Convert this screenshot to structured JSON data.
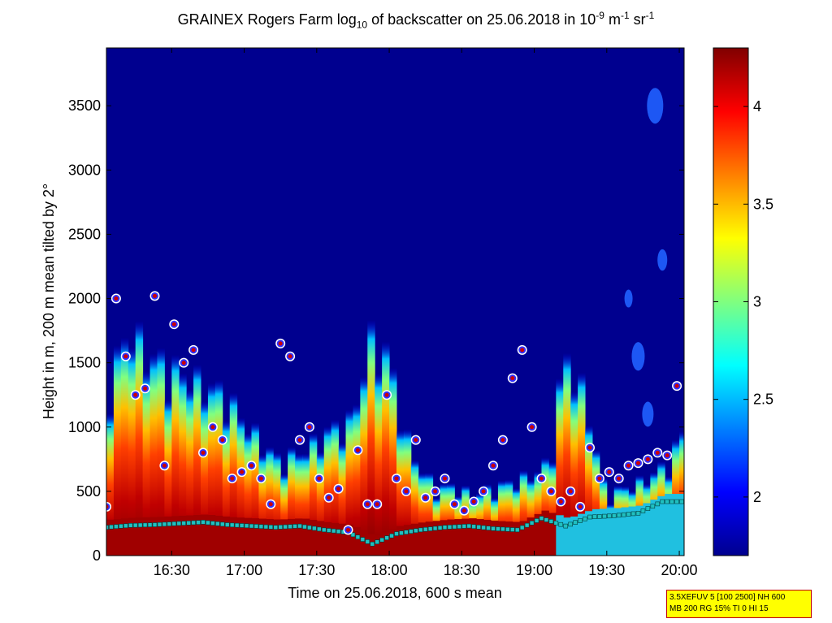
{
  "title": {
    "prefix": "GRAINEX Rogers Farm log",
    "sub": "10",
    "mid": " of backscatter on 25.06.2018 in 10",
    "sup1": "-9",
    "mid2": " m",
    "sup2": "-1",
    "mid3": " sr",
    "sup3": "-1"
  },
  "infobox": {
    "line1": "3.5XEFUV 5 [100 2500] NH 600",
    "line2": "MB 200 RG 15% TI 0 HI 15"
  },
  "colors": {
    "background_low": "#00008f",
    "aerosol_high": "#800000",
    "marker_fill": "#cc0000",
    "marker_ring": "#3030ff",
    "marker_halo": "#ffffff",
    "cloud_base": "#20c0c0"
  },
  "chart_data": {
    "type": "heatmap",
    "xlabel": "Time on 25.06.2018, 600 s mean",
    "ylabel": "Height in m, 200 m mean tilted by 2°",
    "x_ticks": [
      "16:30",
      "17:00",
      "17:30",
      "18:00",
      "18:30",
      "19:00",
      "19:30",
      "20:00"
    ],
    "y_ticks": [
      "0",
      "500",
      "1000",
      "1500",
      "2000",
      "2500",
      "3000",
      "3500"
    ],
    "xlim": [
      "16:03",
      "20:02"
    ],
    "ylim": [
      0,
      3950
    ],
    "colorbar": {
      "range": [
        1.7,
        4.3
      ],
      "ticks": [
        "2",
        "2.5",
        "3",
        "3.5",
        "4"
      ],
      "colormap": "jet"
    },
    "layer_top_profile": {
      "time_min": [
        0,
        8,
        15,
        25,
        35,
        48,
        55,
        70,
        82,
        92,
        100,
        108,
        115,
        122,
        128,
        135,
        142,
        150,
        158,
        166,
        175,
        182,
        188,
        196,
        205,
        212,
        220,
        228,
        234,
        238
      ],
      "height_m": [
        1300,
        1700,
        1500,
        1400,
        1300,
        1200,
        1000,
        700,
        800,
        950,
        1000,
        1600,
        1500,
        900,
        650,
        500,
        520,
        450,
        500,
        550,
        600,
        700,
        1500,
        1200,
        450,
        500,
        550,
        650,
        800,
        950
      ]
    },
    "gradient_markers_m": {
      "time_min": [
        0,
        4,
        8,
        12,
        16,
        20,
        24,
        28,
        32,
        36,
        40,
        44,
        48,
        52,
        56,
        60,
        64,
        68,
        72,
        76,
        80,
        84,
        88,
        92,
        96,
        100,
        104,
        108,
        112,
        116,
        120,
        124,
        128,
        132,
        136,
        140,
        144,
        148,
        152,
        156,
        160,
        164,
        168,
        172,
        176,
        180,
        184,
        188,
        192,
        196,
        200,
        204,
        208,
        212,
        216,
        220,
        224,
        228,
        232,
        236
      ],
      "height_m": [
        380,
        2000,
        1550,
        1250,
        1300,
        2020,
        700,
        1800,
        1500,
        1600,
        800,
        1000,
        900,
        600,
        650,
        700,
        600,
        400,
        1650,
        1550,
        900,
        1000,
        600,
        450,
        520,
        200,
        820,
        400,
        400,
        1250,
        600,
        500,
        900,
        450,
        500,
        600,
        400,
        350,
        420,
        500,
        700,
        900,
        1380,
        1600,
        1000,
        600,
        500,
        420,
        500,
        380,
        840,
        600,
        650,
        600,
        700,
        720,
        750,
        800,
        780,
        1320
      ]
    },
    "cloud_base_m": {
      "time_min": [
        0,
        10,
        20,
        30,
        40,
        50,
        60,
        70,
        80,
        90,
        100,
        110,
        120,
        130,
        140,
        150,
        160,
        170,
        180,
        190,
        200,
        210,
        220,
        230,
        238
      ],
      "height_m": [
        220,
        235,
        240,
        250,
        260,
        240,
        230,
        220,
        230,
        200,
        180,
        90,
        170,
        200,
        220,
        230,
        210,
        200,
        290,
        230,
        300,
        310,
        330,
        420,
        420
      ]
    }
  }
}
